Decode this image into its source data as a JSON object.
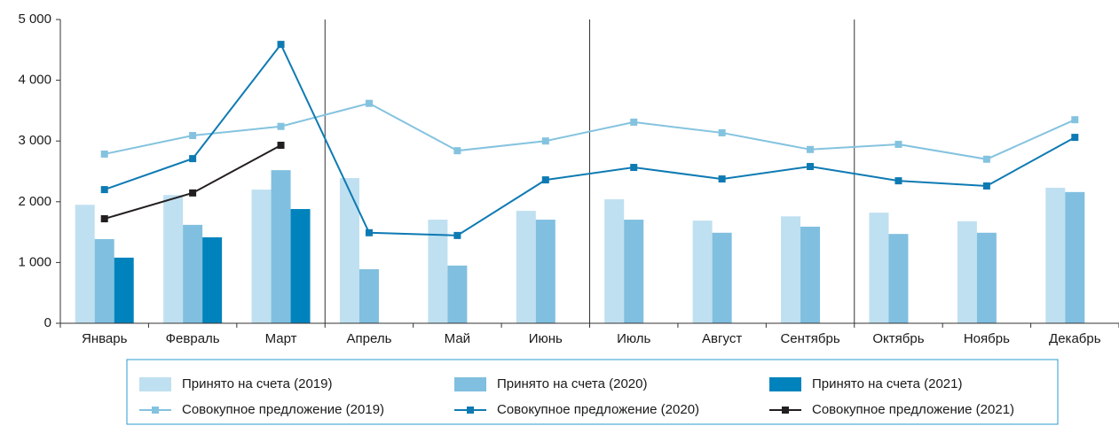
{
  "chart_data": {
    "type": "bar",
    "categories": [
      "Январь",
      "Февраль",
      "Март",
      "Апрель",
      "Май",
      "Июнь",
      "Июль",
      "Август",
      "Сентябрь",
      "Октябрь",
      "Ноябрь",
      "Декабрь"
    ],
    "series": [
      {
        "name": "Принято на счета (2019)",
        "type": "bar",
        "color": "#bfe0f0",
        "values": [
          1950,
          2110,
          2200,
          2390,
          1705,
          1850,
          2040,
          1690,
          1760,
          1820,
          1680,
          2230
        ]
      },
      {
        "name": "Принято на счета (2020)",
        "type": "bar",
        "color": "#80bfdf",
        "values": [
          1385,
          1620,
          2520,
          890,
          950,
          1705,
          1705,
          1490,
          1590,
          1470,
          1490,
          2160
        ]
      },
      {
        "name": "Принято на счета (2021)",
        "type": "bar",
        "color": "#0083bd",
        "values": [
          1080,
          1415,
          1880,
          null,
          null,
          null,
          null,
          null,
          null,
          null,
          null,
          null
        ]
      },
      {
        "name": "Совокупное предложение (2019)",
        "type": "line",
        "color": "#84c3df",
        "values": [
          2785,
          3090,
          3240,
          3620,
          2840,
          3000,
          3310,
          3135,
          2860,
          2945,
          2700,
          3350
        ]
      },
      {
        "name": "Совокупное предложение (2020)",
        "type": "line",
        "color": "#0e7ab3",
        "values": [
          2200,
          2710,
          4590,
          1490,
          1445,
          2360,
          2565,
          2375,
          2580,
          2345,
          2260,
          3060
        ]
      },
      {
        "name": "Совокупное предложение (2021)",
        "type": "line",
        "color": "#231f20",
        "values": [
          1720,
          2145,
          2930,
          null,
          null,
          null,
          null,
          null,
          null,
          null,
          null,
          null
        ]
      }
    ],
    "ylim": [
      0,
      5000
    ],
    "yticks": [
      0,
      {
        "value": 1000,
        "label": "1 000"
      },
      {
        "value": 2000,
        "label": "2 000"
      },
      {
        "value": 3000,
        "label": "3 000"
      },
      {
        "value": 4000,
        "label": "4 000"
      },
      {
        "value": 5000,
        "label": "5 000"
      }
    ],
    "grid": false
  }
}
